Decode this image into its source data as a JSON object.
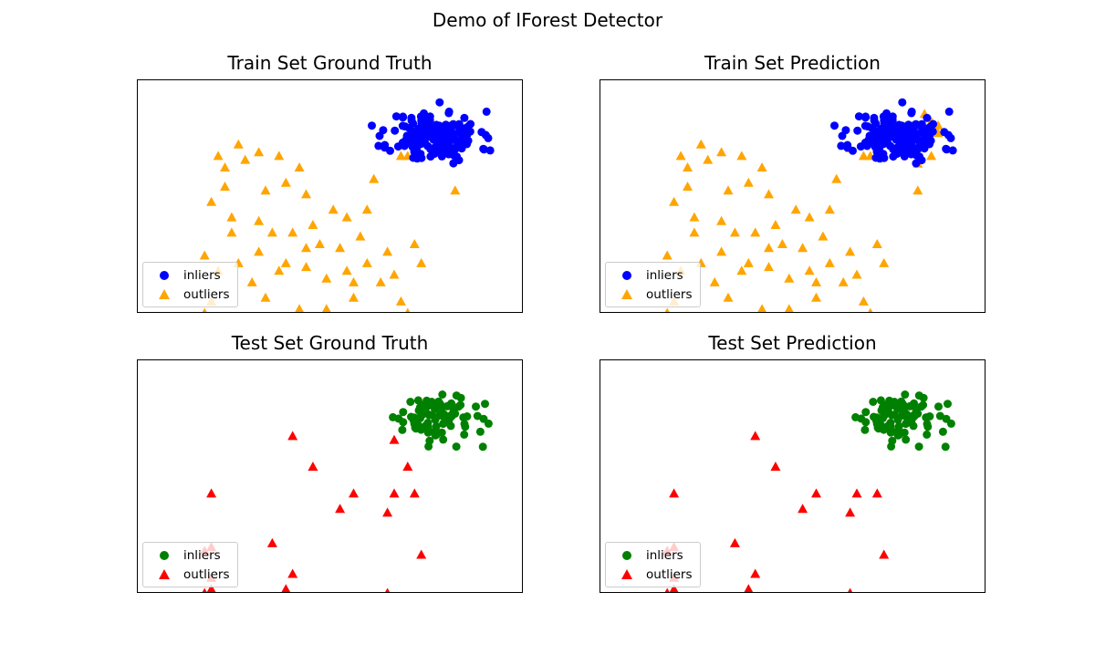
{
  "figure": {
    "title": "Demo of IForest Detector"
  },
  "colors": {
    "train_inlier": "#0000ff",
    "train_outlier": "#ffa500",
    "test_inlier": "#008000",
    "test_outlier": "#ff0000"
  },
  "chart_data": [
    {
      "type": "scatter",
      "title": "Train Set Ground Truth",
      "legend": [
        "inliers",
        "outliers"
      ],
      "legend_position": "lower-left",
      "axes_visible": false,
      "xlim": [
        -4.4,
        1.3
      ],
      "ylim": [
        -4.6,
        1.5
      ],
      "series": [
        {
          "name": "inliers",
          "marker": "circle",
          "color": "#0000ff",
          "cluster": {
            "center": [
              0.0,
              0.0
            ],
            "spread": 0.33,
            "count": 180,
            "seed": 11
          }
        },
        {
          "name": "outliers",
          "marker": "triangle",
          "color": "#ffa500",
          "points": [
            [
              -3.2,
              -0.5
            ],
            [
              -2.9,
              -0.2
            ],
            [
              -2.6,
              -0.4
            ],
            [
              -3.1,
              -0.8
            ],
            [
              -2.8,
              -0.6
            ],
            [
              -2.3,
              -0.5
            ],
            [
              -2.0,
              -0.8
            ],
            [
              -3.3,
              -1.7
            ],
            [
              -3.1,
              -1.3
            ],
            [
              -2.5,
              -1.4
            ],
            [
              -2.2,
              -1.2
            ],
            [
              -1.9,
              -1.5
            ],
            [
              -3.0,
              -2.1
            ],
            [
              -2.6,
              -2.2
            ],
            [
              -2.4,
              -2.5
            ],
            [
              -2.1,
              -2.5
            ],
            [
              -1.8,
              -2.3
            ],
            [
              -1.5,
              -1.9
            ],
            [
              -1.3,
              -2.1
            ],
            [
              -1.0,
              -1.9
            ],
            [
              -1.7,
              -2.8
            ],
            [
              -1.4,
              -2.9
            ],
            [
              -3.4,
              -3.1
            ],
            [
              -3.2,
              -3.5
            ],
            [
              -2.9,
              -3.3
            ],
            [
              -2.7,
              -3.8
            ],
            [
              -2.3,
              -3.5
            ],
            [
              -1.9,
              -3.4
            ],
            [
              -1.6,
              -3.7
            ],
            [
              -1.3,
              -3.5
            ],
            [
              -1.0,
              -3.3
            ],
            [
              -0.7,
              -3.0
            ],
            [
              -0.6,
              -3.6
            ],
            [
              -0.5,
              -4.3
            ],
            [
              -0.3,
              -2.8
            ],
            [
              -0.4,
              -4.6
            ],
            [
              -0.2,
              -3.3
            ],
            [
              -1.2,
              -4.2
            ],
            [
              -1.6,
              -4.5
            ],
            [
              -2.0,
              -4.5
            ],
            [
              -3.3,
              -4.3
            ],
            [
              -3.4,
              -4.6
            ],
            [
              -0.9,
              -1.1
            ],
            [
              -0.5,
              -0.5
            ],
            [
              -0.3,
              -0.1
            ],
            [
              -0.4,
              -0.5
            ],
            [
              0.3,
              -1.4
            ],
            [
              -1.1,
              -2.6
            ],
            [
              -2.2,
              -3.3
            ],
            [
              -1.9,
              -2.9
            ],
            [
              -2.6,
              -3.0
            ],
            [
              -3.0,
              -2.5
            ],
            [
              -2.5,
              -4.2
            ],
            [
              -1.2,
              -3.8
            ],
            [
              -0.8,
              -3.8
            ]
          ]
        }
      ]
    },
    {
      "type": "scatter",
      "title": "Train Set Prediction",
      "legend": [
        "inliers",
        "outliers"
      ],
      "legend_position": "lower-left",
      "axes_visible": false,
      "xlim": [
        -4.4,
        1.3
      ],
      "ylim": [
        -4.6,
        1.5
      ],
      "series": [
        {
          "name": "inliers",
          "marker": "circle",
          "color": "#0000ff",
          "cluster": {
            "center": [
              0.0,
              0.0
            ],
            "spread": 0.33,
            "count": 180,
            "seed": 11
          }
        },
        {
          "name": "outliers",
          "marker": "triangle",
          "color": "#ffa500",
          "points": [
            [
              -3.2,
              -0.5
            ],
            [
              -2.9,
              -0.2
            ],
            [
              -2.6,
              -0.4
            ],
            [
              -3.1,
              -0.8
            ],
            [
              -2.8,
              -0.6
            ],
            [
              -2.3,
              -0.5
            ],
            [
              -2.0,
              -0.8
            ],
            [
              -3.3,
              -1.7
            ],
            [
              -3.1,
              -1.3
            ],
            [
              -2.5,
              -1.4
            ],
            [
              -2.2,
              -1.2
            ],
            [
              -1.9,
              -1.5
            ],
            [
              -3.0,
              -2.1
            ],
            [
              -2.6,
              -2.2
            ],
            [
              -2.4,
              -2.5
            ],
            [
              -2.1,
              -2.5
            ],
            [
              -1.8,
              -2.3
            ],
            [
              -1.5,
              -1.9
            ],
            [
              -1.3,
              -2.1
            ],
            [
              -1.0,
              -1.9
            ],
            [
              -1.7,
              -2.8
            ],
            [
              -1.4,
              -2.9
            ],
            [
              -3.4,
              -3.1
            ],
            [
              -3.2,
              -3.5
            ],
            [
              -2.9,
              -3.3
            ],
            [
              -2.7,
              -3.8
            ],
            [
              -2.3,
              -3.5
            ],
            [
              -1.9,
              -3.4
            ],
            [
              -1.6,
              -3.7
            ],
            [
              -1.3,
              -3.5
            ],
            [
              -1.0,
              -3.3
            ],
            [
              -0.7,
              -3.0
            ],
            [
              -0.6,
              -3.6
            ],
            [
              -0.5,
              -4.3
            ],
            [
              -0.3,
              -2.8
            ],
            [
              -0.4,
              -4.6
            ],
            [
              -0.2,
              -3.3
            ],
            [
              -1.2,
              -4.2
            ],
            [
              -1.6,
              -4.5
            ],
            [
              -2.0,
              -4.5
            ],
            [
              -3.3,
              -4.3
            ],
            [
              -3.4,
              -4.6
            ],
            [
              -0.9,
              -1.1
            ],
            [
              -0.5,
              -0.5
            ],
            [
              -0.3,
              -0.1
            ],
            [
              -0.4,
              -0.5
            ],
            [
              0.3,
              -1.4
            ],
            [
              -1.1,
              -2.6
            ],
            [
              -2.2,
              -3.3
            ],
            [
              -1.9,
              -2.9
            ],
            [
              -2.6,
              -3.0
            ],
            [
              -3.0,
              -2.5
            ],
            [
              -2.5,
              -4.2
            ],
            [
              -1.2,
              -3.8
            ],
            [
              -0.8,
              -3.8
            ],
            [
              0.5,
              0.4
            ],
            [
              0.4,
              0.6
            ],
            [
              0.6,
              0.3
            ],
            [
              0.5,
              -0.5
            ],
            [
              -0.7,
              -0.3
            ],
            [
              0.3,
              -0.7
            ],
            [
              0.6,
              0.1
            ]
          ]
        }
      ]
    },
    {
      "type": "scatter",
      "title": "Test Set Ground Truth",
      "legend": [
        "inliers",
        "outliers"
      ],
      "legend_position": "lower-left",
      "axes_visible": false,
      "xlim": [
        -4.4,
        1.3
      ],
      "ylim": [
        -4.6,
        1.5
      ],
      "series": [
        {
          "name": "inliers",
          "marker": "circle",
          "color": "#008000",
          "cluster": {
            "center": [
              0.0,
              0.0
            ],
            "spread": 0.3,
            "count": 90,
            "seed": 29
          }
        },
        {
          "name": "outliers",
          "marker": "triangle",
          "color": "#ff0000",
          "points": [
            [
              -2.1,
              -0.5
            ],
            [
              -0.6,
              -0.6
            ],
            [
              -1.8,
              -1.3
            ],
            [
              -0.4,
              -1.3
            ],
            [
              -3.3,
              -2.0
            ],
            [
              -1.2,
              -2.0
            ],
            [
              -0.6,
              -2.0
            ],
            [
              -0.3,
              -2.0
            ],
            [
              -1.4,
              -2.4
            ],
            [
              -0.7,
              -2.5
            ],
            [
              -2.4,
              -3.3
            ],
            [
              -3.3,
              -3.4
            ],
            [
              -3.4,
              -3.5
            ],
            [
              -0.2,
              -3.6
            ],
            [
              -2.1,
              -4.1
            ],
            [
              -3.3,
              -4.2
            ],
            [
              -2.2,
              -4.5
            ],
            [
              -3.3,
              -4.5
            ],
            [
              -3.4,
              -4.6
            ],
            [
              -0.7,
              -4.6
            ]
          ]
        }
      ]
    },
    {
      "type": "scatter",
      "title": "Test Set Prediction",
      "legend": [
        "inliers",
        "outliers"
      ],
      "legend_position": "lower-left",
      "axes_visible": false,
      "xlim": [
        -4.4,
        1.3
      ],
      "ylim": [
        -4.6,
        1.5
      ],
      "series": [
        {
          "name": "inliers",
          "marker": "circle",
          "color": "#008000",
          "cluster": {
            "center": [
              0.0,
              0.0
            ],
            "spread": 0.3,
            "count": 90,
            "seed": 29
          }
        },
        {
          "name": "outliers",
          "marker": "triangle",
          "color": "#ff0000",
          "points": [
            [
              -2.1,
              -0.5
            ],
            [
              -1.8,
              -1.3
            ],
            [
              -0.6,
              -2.0
            ],
            [
              -0.3,
              -2.0
            ],
            [
              -3.3,
              -2.0
            ],
            [
              -1.2,
              -2.0
            ],
            [
              -1.4,
              -2.4
            ],
            [
              -0.7,
              -2.5
            ],
            [
              -2.4,
              -3.3
            ],
            [
              -3.3,
              -3.4
            ],
            [
              -3.4,
              -3.5
            ],
            [
              -0.2,
              -3.6
            ],
            [
              -2.1,
              -4.1
            ],
            [
              -3.3,
              -4.2
            ],
            [
              -2.2,
              -4.5
            ],
            [
              -3.3,
              -4.5
            ],
            [
              -3.4,
              -4.6
            ],
            [
              -0.7,
              -4.6
            ]
          ]
        }
      ]
    }
  ]
}
